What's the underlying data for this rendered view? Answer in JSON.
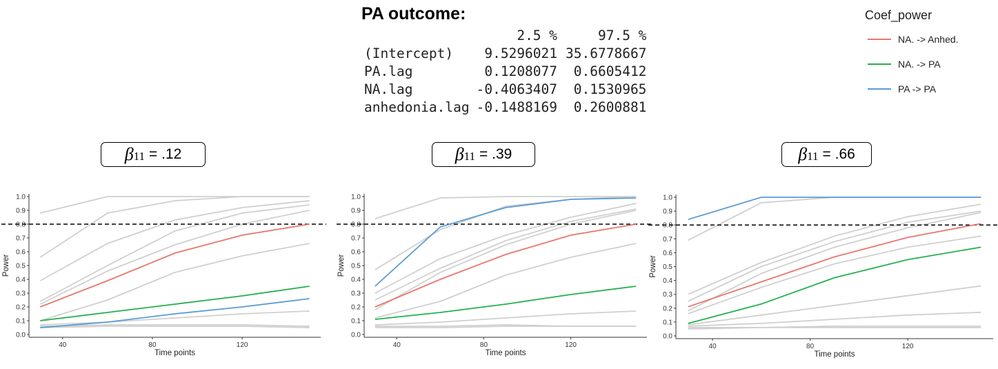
{
  "title": "PA outcome:",
  "ci_table": {
    "headers": [
      "",
      "2.5 %",
      "97.5 %"
    ],
    "rows": [
      {
        "label": "(Intercept)",
        "low": "9.5296021",
        "high": "35.6778667"
      },
      {
        "label": "PA.lag",
        "low": "0.1208077",
        "high": "0.6605412"
      },
      {
        "label": "NA.lag",
        "low": "-0.4063407",
        "high": "0.1530965"
      },
      {
        "label": "anhedonia.lag",
        "low": "-0.1488169",
        "high": "0.2600881"
      }
    ]
  },
  "legend": {
    "title": "Coef_power",
    "items": [
      {
        "label": "NA. -> Anhed.",
        "color": "#e8766d"
      },
      {
        "label": "NA. -> PA",
        "color": "#22b14c"
      },
      {
        "label": "PA -> PA",
        "color": "#5b9bd5"
      }
    ]
  },
  "panels": [
    {
      "beta_sub": "11",
      "beta_value": "= .12"
    },
    {
      "beta_sub": "11",
      "beta_value": "= .39"
    },
    {
      "beta_sub": "11",
      "beta_value": "= .66"
    }
  ],
  "chart_data": [
    {
      "type": "line",
      "xlabel": "Time points",
      "ylabel": "Power",
      "xlim": [
        25,
        155
      ],
      "ylim": [
        0,
        1
      ],
      "xticks": [
        "40",
        "80",
        "120"
      ],
      "yticks": [
        "0.0",
        "0.1",
        "0.2",
        "0.3",
        "0.4",
        "0.5",
        "0.6",
        "0.7",
        "0.8",
        "0.9",
        "1.0"
      ],
      "x": [
        30,
        60,
        90,
        120,
        150
      ],
      "reference_line": 0.8,
      "series": [
        {
          "name": "NA. -> Anhed.",
          "color": "#e8766d",
          "values": [
            0.2,
            0.39,
            0.59,
            0.72,
            0.8
          ]
        },
        {
          "name": "NA. -> PA",
          "color": "#22b14c",
          "values": [
            0.1,
            0.16,
            0.22,
            0.28,
            0.35
          ]
        },
        {
          "name": "PA -> PA",
          "color": "#5b9bd5",
          "values": [
            0.05,
            0.09,
            0.15,
            0.2,
            0.26
          ]
        }
      ],
      "background_series": [
        [
          0.88,
          1.0,
          1.0,
          1.0,
          1.0
        ],
        [
          0.56,
          0.88,
          0.97,
          1.0,
          1.0
        ],
        [
          0.39,
          0.66,
          0.83,
          0.92,
          0.97
        ],
        [
          0.24,
          0.5,
          0.75,
          0.88,
          0.94
        ],
        [
          0.22,
          0.46,
          0.65,
          0.8,
          0.9
        ],
        [
          0.1,
          0.25,
          0.45,
          0.57,
          0.66
        ],
        [
          0.07,
          0.09,
          0.12,
          0.15,
          0.17
        ],
        [
          0.06,
          0.07,
          0.07,
          0.07,
          0.06
        ],
        [
          0.05,
          0.06,
          0.06,
          0.06,
          0.05
        ]
      ]
    },
    {
      "type": "line",
      "xlabel": "Time points",
      "ylabel": "Power",
      "xlim": [
        25,
        155
      ],
      "ylim": [
        0,
        1
      ],
      "xticks": [
        "40",
        "80",
        "120"
      ],
      "yticks": [
        "0.0",
        "0.1",
        "0.2",
        "0.3",
        "0.4",
        "0.5",
        "0.6",
        "0.7",
        "0.8",
        "0.9",
        "1.0"
      ],
      "x": [
        30,
        60,
        90,
        120,
        150
      ],
      "reference_line": 0.8,
      "series": [
        {
          "name": "NA. -> Anhed.",
          "color": "#e8766d",
          "values": [
            0.2,
            0.4,
            0.58,
            0.72,
            0.8
          ]
        },
        {
          "name": "NA. -> PA",
          "color": "#22b14c",
          "values": [
            0.11,
            0.16,
            0.22,
            0.29,
            0.35
          ]
        },
        {
          "name": "PA -> PA",
          "color": "#5b9bd5",
          "values": [
            0.35,
            0.78,
            0.92,
            0.98,
            0.99
          ]
        }
      ],
      "background_series": [
        [
          0.84,
          0.99,
          1.0,
          1.0,
          1.0
        ],
        [
          0.47,
          0.76,
          0.93,
          0.98,
          1.0
        ],
        [
          0.3,
          0.55,
          0.72,
          0.85,
          0.95
        ],
        [
          0.25,
          0.48,
          0.68,
          0.82,
          0.91
        ],
        [
          0.18,
          0.45,
          0.65,
          0.8,
          0.9
        ],
        [
          0.12,
          0.24,
          0.43,
          0.56,
          0.66
        ],
        [
          0.07,
          0.09,
          0.12,
          0.15,
          0.17
        ],
        [
          0.06,
          0.06,
          0.07,
          0.06,
          0.06
        ],
        [
          0.05,
          0.05,
          0.06,
          0.06,
          0.06
        ]
      ]
    },
    {
      "type": "line",
      "xlabel": "Time points",
      "ylabel": "Power",
      "xlim": [
        25,
        155
      ],
      "ylim": [
        0,
        1
      ],
      "xticks": [
        "40",
        "80",
        "120"
      ],
      "yticks": [
        "0.0",
        "0.1",
        "0.2",
        "0.3",
        "0.4",
        "0.5",
        "0.6",
        "0.7",
        "0.8",
        "0.9",
        "1.0"
      ],
      "x": [
        30,
        60,
        90,
        120,
        150
      ],
      "reference_line": 0.8,
      "series": [
        {
          "name": "NA. -> Anhed.",
          "color": "#e8766d",
          "values": [
            0.21,
            0.39,
            0.57,
            0.71,
            0.81
          ]
        },
        {
          "name": "NA. -> PA",
          "color": "#22b14c",
          "values": [
            0.09,
            0.23,
            0.42,
            0.55,
            0.64
          ]
        },
        {
          "name": "PA -> PA",
          "color": "#5b9bd5",
          "values": [
            0.84,
            1.0,
            1.0,
            1.0,
            1.0
          ]
        }
      ],
      "background_series": [
        [
          0.69,
          0.96,
          1.0,
          1.0,
          1.0
        ],
        [
          0.3,
          0.53,
          0.72,
          0.86,
          0.95
        ],
        [
          0.25,
          0.5,
          0.68,
          0.82,
          0.9
        ],
        [
          0.18,
          0.45,
          0.64,
          0.78,
          0.89
        ],
        [
          0.16,
          0.35,
          0.52,
          0.64,
          0.72
        ],
        [
          0.08,
          0.15,
          0.22,
          0.29,
          0.36
        ],
        [
          0.07,
          0.09,
          0.12,
          0.15,
          0.17
        ],
        [
          0.06,
          0.06,
          0.07,
          0.07,
          0.07
        ],
        [
          0.05,
          0.06,
          0.06,
          0.06,
          0.06
        ]
      ]
    }
  ]
}
